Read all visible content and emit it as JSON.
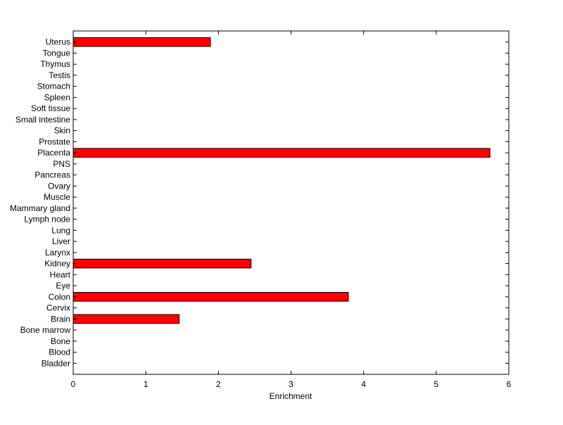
{
  "chart_data": {
    "type": "bar",
    "orientation": "horizontal",
    "title": "",
    "xlabel": "Enrichment",
    "ylabel": "",
    "xlim": [
      0,
      6
    ],
    "xticks": [
      "0",
      "1",
      "2",
      "3",
      "4",
      "5",
      "6"
    ],
    "grid": false,
    "bar_color": "#ff0000",
    "categories": [
      "Bladder",
      "Blood",
      "Bone",
      "Bone marrow",
      "Brain",
      "Cervix",
      "Colon",
      "Eye",
      "Heart",
      "Kidney",
      "Larynx",
      "Liver",
      "Lung",
      "Lymph node",
      "Mammary gland",
      "Muscle",
      "Ovary",
      "Pancreas",
      "PNS",
      "Placenta",
      "Prostate",
      "Skin",
      "Small intestine",
      "Soft tissue",
      "Spleen",
      "Stomach",
      "Testis",
      "Thymus",
      "Tongue",
      "Uterus"
    ],
    "values": [
      0,
      0,
      0,
      0,
      1.46,
      0,
      3.79,
      0,
      0,
      2.45,
      0,
      0,
      0,
      0,
      0,
      0,
      0,
      0,
      0,
      5.74,
      0,
      0,
      0,
      0,
      0,
      0,
      0,
      0,
      0,
      1.89
    ]
  }
}
